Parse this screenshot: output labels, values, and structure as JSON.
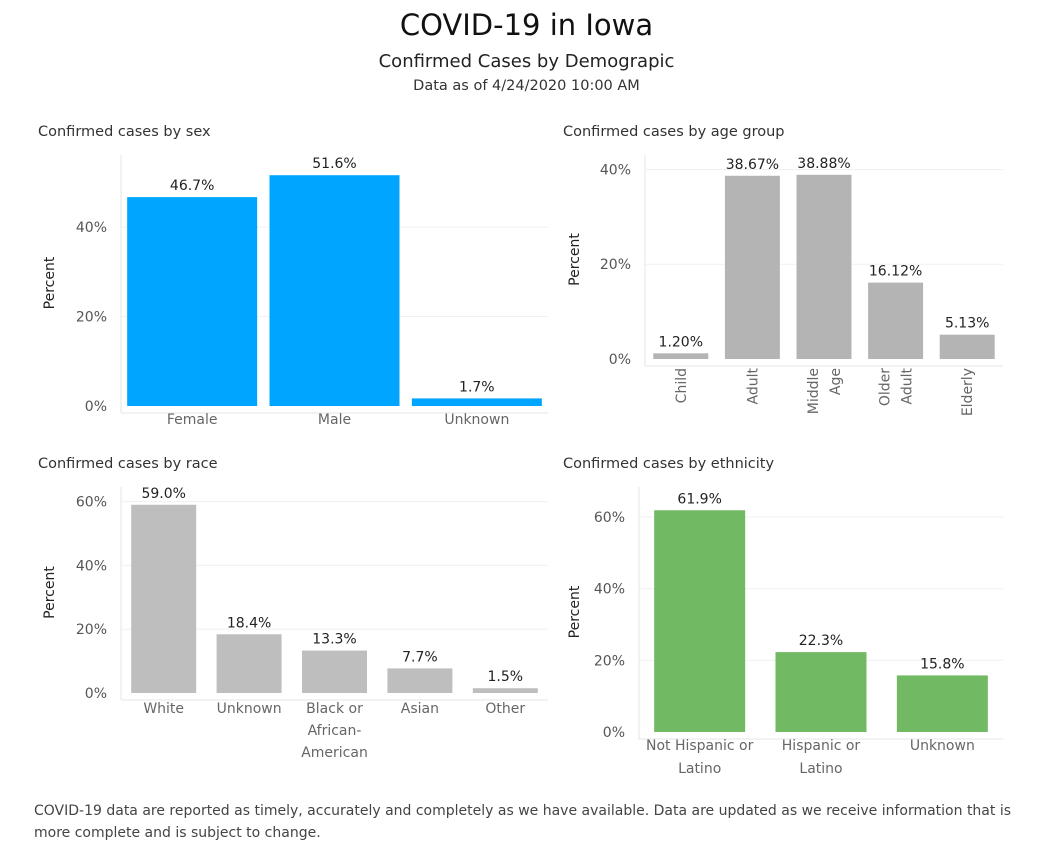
{
  "header": {
    "title": "COVID-19 in Iowa",
    "subtitle": "Confirmed Cases by Demograpic",
    "as_of": "Data as of 4/24/2020 10:00 AM"
  },
  "footnote": "COVID-19 data are reported as timely, accurately and completely as we have available.  Data are updated as we receive information that is more complete and is subject to change.",
  "chart_data": [
    {
      "id": "sex",
      "type": "bar",
      "title": "Confirmed cases by sex",
      "xlabel": "",
      "ylabel": "Percent",
      "categories": [
        [
          "Female"
        ],
        [
          "Male"
        ],
        [
          "Unknown"
        ]
      ],
      "values": [
        46.7,
        51.6,
        1.7
      ],
      "value_labels": [
        "46.7%",
        "51.6%",
        "1.7%"
      ],
      "yticks": [
        0,
        20,
        40
      ],
      "ytick_labels": [
        "0%",
        "20%",
        "40%"
      ],
      "ylim": [
        0,
        55
      ],
      "grid": true,
      "color": "#00a5ff",
      "rotated_labels": false
    },
    {
      "id": "age",
      "type": "bar",
      "title": "Confirmed cases by age group",
      "xlabel": "",
      "ylabel": "Percent",
      "categories": [
        [
          "Child"
        ],
        [
          "Adult"
        ],
        [
          "Middle",
          "Age"
        ],
        [
          "Older",
          "Adult"
        ],
        [
          "Elderly"
        ]
      ],
      "values": [
        1.2,
        38.67,
        38.88,
        16.12,
        5.13
      ],
      "value_labels": [
        "1.20%",
        "38.67%",
        "38.88%",
        "16.12%",
        "5.13%"
      ],
      "yticks": [
        0,
        20,
        40
      ],
      "ytick_labels": [
        "0%",
        "20%",
        "40%"
      ],
      "ylim": [
        0,
        42
      ],
      "grid": true,
      "color": "#b4b4b4",
      "rotated_labels": true
    },
    {
      "id": "race",
      "type": "bar",
      "title": "Confirmed cases by race",
      "xlabel": "",
      "ylabel": "Percent",
      "categories": [
        [
          "White"
        ],
        [
          "Unknown"
        ],
        [
          "Black or",
          "African-",
          "American"
        ],
        [
          "Asian"
        ],
        [
          "Other"
        ]
      ],
      "values": [
        59.0,
        18.4,
        13.3,
        7.7,
        1.5
      ],
      "value_labels": [
        "59.0%",
        "18.4%",
        "13.3%",
        "7.7%",
        "1.5%"
      ],
      "yticks": [
        0,
        20,
        40,
        60
      ],
      "ytick_labels": [
        "0%",
        "20%",
        "40%",
        "60%"
      ],
      "ylim": [
        0,
        63
      ],
      "grid": true,
      "color": "#bebebe",
      "rotated_labels": false
    },
    {
      "id": "ethnicity",
      "type": "bar",
      "title": "Confirmed cases by ethnicity",
      "xlabel": "",
      "ylabel": "Percent",
      "categories": [
        [
          "Not Hispanic or",
          "Latino"
        ],
        [
          "Hispanic or",
          "Latino"
        ],
        [
          "Unknown"
        ]
      ],
      "values": [
        61.9,
        22.3,
        15.8
      ],
      "value_labels": [
        "61.9%",
        "22.3%",
        "15.8%"
      ],
      "yticks": [
        0,
        20,
        40,
        60
      ],
      "ytick_labels": [
        "0%",
        "20%",
        "40%",
        "60%"
      ],
      "ylim": [
        0,
        67
      ],
      "grid": true,
      "color": "#72b963",
      "rotated_labels": false
    }
  ]
}
